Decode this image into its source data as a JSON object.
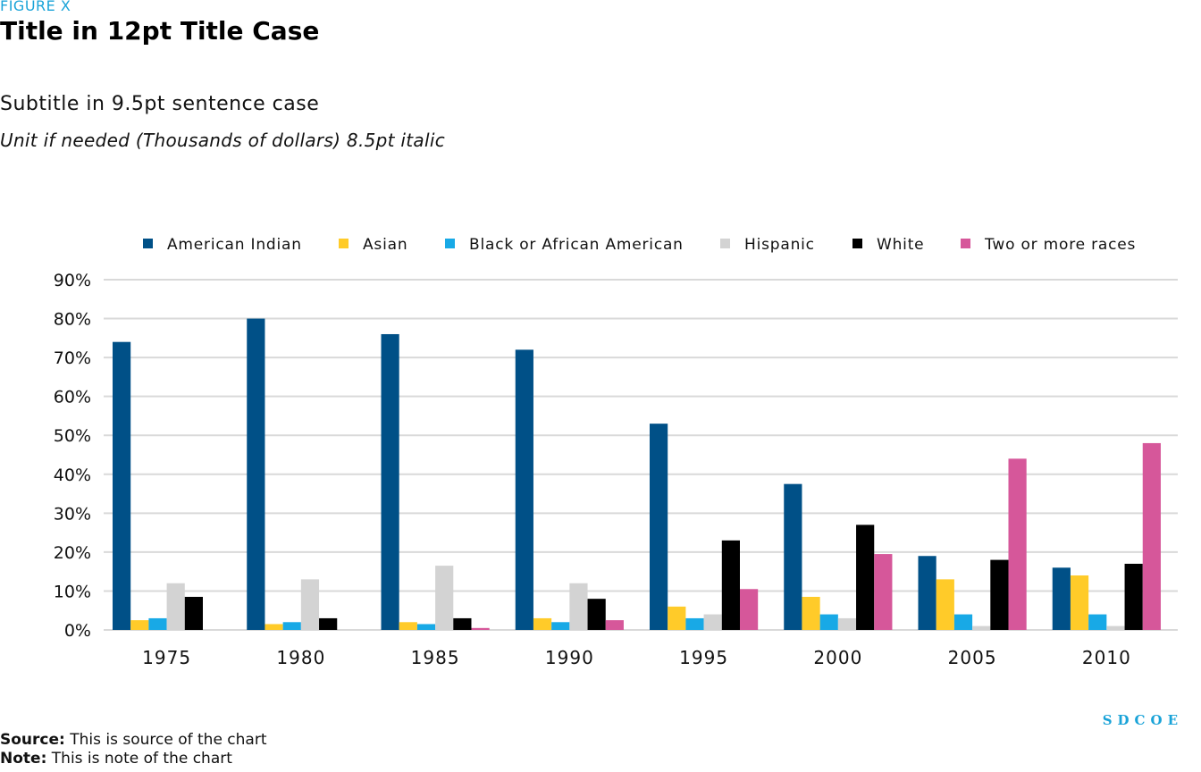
{
  "header": {
    "figure_label": "FIGURE X",
    "title": "Title in 12pt Title Case",
    "subtitle": "Subtitle in 9.5pt sentence case",
    "unit": "Unit if needed (Thousands of dollars) 8.5pt italic"
  },
  "footer": {
    "source_label": "Source:",
    "source_text": "This is source of the chart",
    "note_label": "Note:",
    "note_text": "This is note of the chart",
    "logo": "SDCOE"
  },
  "colors": {
    "figure_label": "#1aa3d8",
    "logo": "#1aa3d8",
    "grid": "#d9d9d9"
  },
  "chart_data": {
    "type": "bar",
    "categories": [
      "1975",
      "1980",
      "1985",
      "1990",
      "1995",
      "2000",
      "2005",
      "2010"
    ],
    "ylim": [
      0,
      90
    ],
    "ytick_step": 10,
    "ytick_suffix": "%",
    "grid": true,
    "legend_position": "top",
    "series": [
      {
        "name": "American Indian",
        "color": "#005087",
        "values": [
          74,
          80,
          76,
          72,
          53,
          37.5,
          19,
          16
        ]
      },
      {
        "name": "Asian",
        "color": "#ffcb29",
        "values": [
          2.5,
          1.5,
          2,
          3,
          6,
          8.5,
          13,
          14
        ]
      },
      {
        "name": "Black or African American",
        "color": "#18a9e6",
        "values": [
          3,
          2,
          1.5,
          2,
          3,
          4,
          4,
          4
        ]
      },
      {
        "name": "Hispanic",
        "color": "#d3d3d3",
        "values": [
          12,
          13,
          16.5,
          12,
          4,
          3,
          1,
          1
        ]
      },
      {
        "name": "White",
        "color": "#000000",
        "values": [
          8.5,
          3,
          3,
          8,
          23,
          27,
          18,
          17
        ]
      },
      {
        "name": "Two or more races",
        "color": "#d6579a",
        "values": [
          0,
          0,
          0.5,
          2.5,
          10.5,
          19.5,
          44,
          48
        ]
      }
    ]
  }
}
